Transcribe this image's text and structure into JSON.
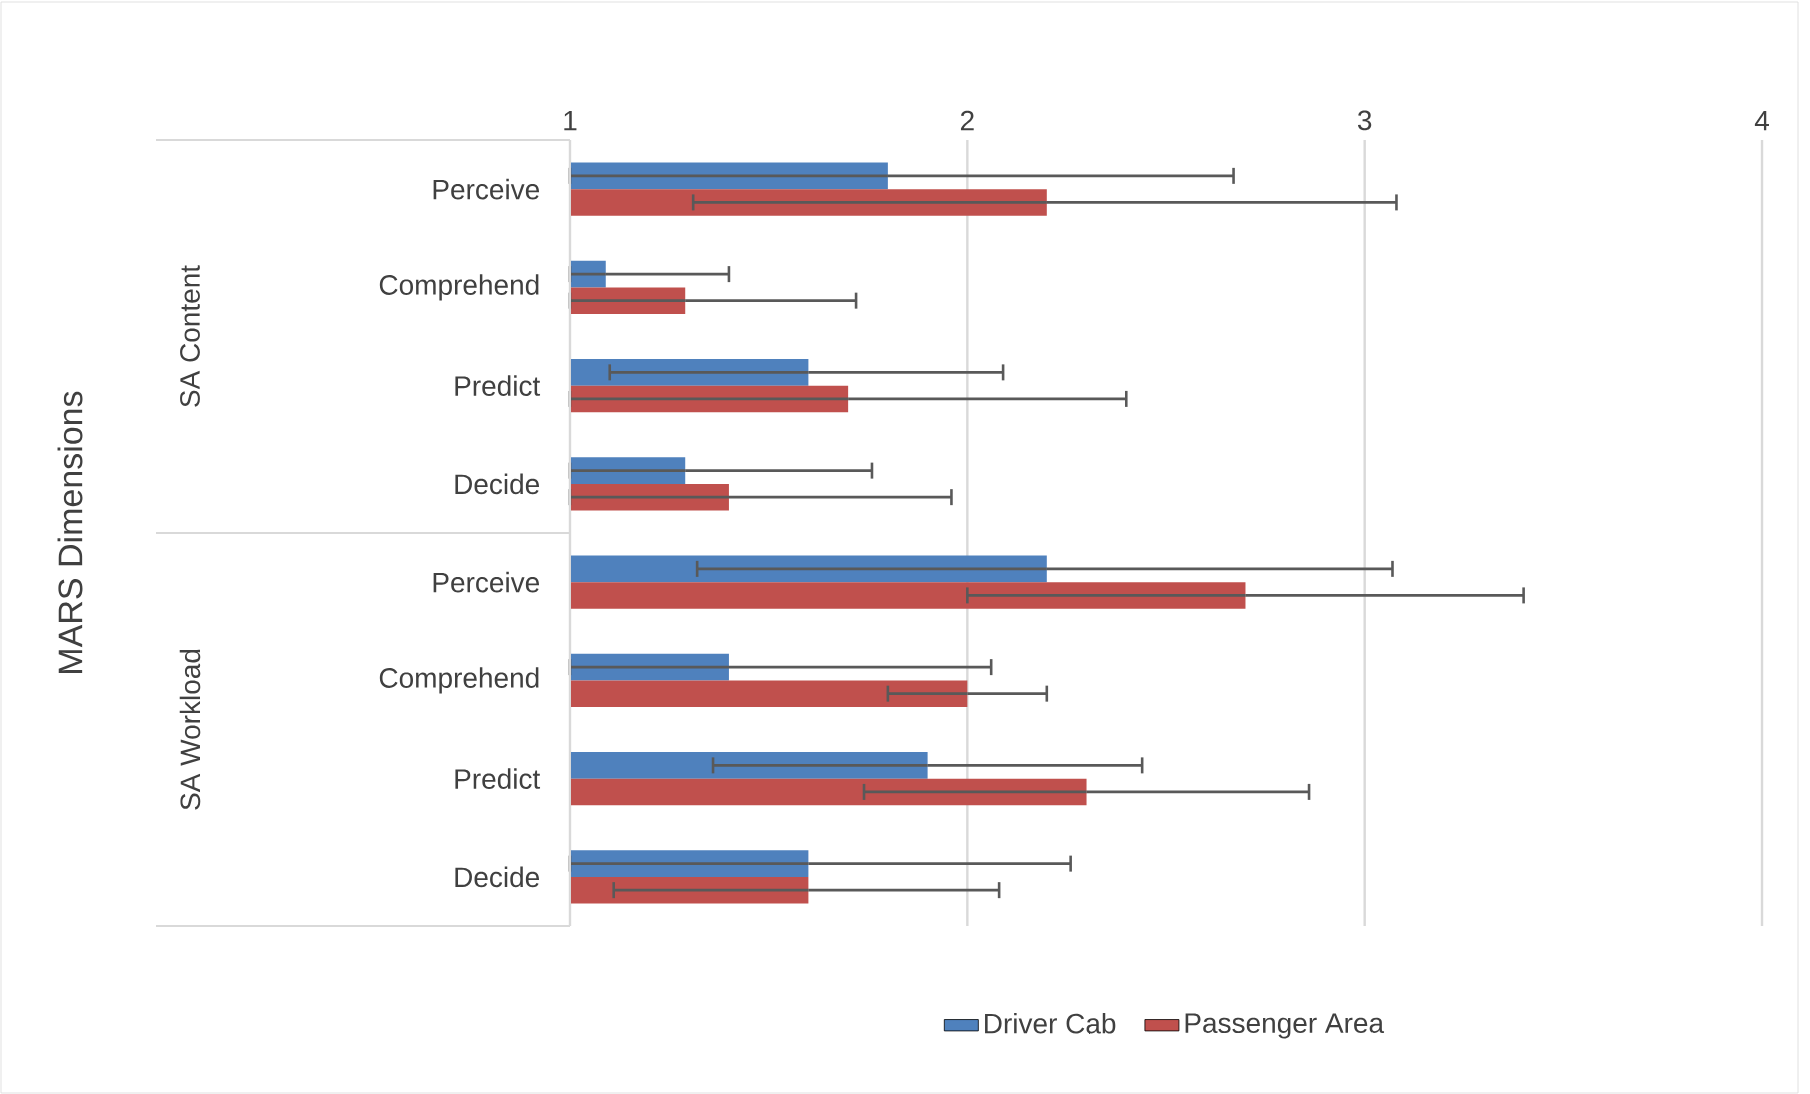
{
  "chart_data": {
    "type": "bar",
    "orientation": "horizontal",
    "categories": [
      "Perceive",
      "Comprehend",
      "Predict",
      "Decide",
      "Perceive",
      "Comprehend",
      "Predict",
      "Decide"
    ],
    "annotations": [
      "MARS Dimensions",
      "SA Content",
      "SA Workload"
    ],
    "series": [
      {
        "name": "Driver Cab",
        "color": "#4f81bd",
        "values": [
          1.8,
          1.09,
          1.6,
          1.29,
          2.2,
          1.4,
          1.9,
          1.6
        ],
        "errors": [
          [
            1,
            2.67
          ],
          [
            1,
            1.4
          ],
          [
            1.1,
            2.09
          ],
          [
            1,
            1.76
          ],
          [
            1.32,
            3.07
          ],
          [
            1,
            2.06
          ],
          [
            1.36,
            2.44
          ],
          [
            1,
            2.26
          ]
        ]
      },
      {
        "name": "Passenger Area",
        "color": "#c0504d",
        "values": [
          2.2,
          1.29,
          1.7,
          1.4,
          2.7,
          2.0,
          2.3,
          1.6
        ],
        "errors": [
          [
            1.31,
            3.08
          ],
          [
            1,
            1.72
          ],
          [
            1,
            2.4
          ],
          [
            1,
            1.96
          ],
          [
            2.0,
            3.4
          ],
          [
            1.8,
            2.2
          ],
          [
            1.74,
            2.86
          ],
          [
            1.11,
            2.08
          ]
        ]
      }
    ],
    "xlim": [
      1,
      4
    ],
    "xticks": [
      1,
      2,
      3,
      4
    ],
    "grid": "x",
    "legend": "bottom"
  }
}
